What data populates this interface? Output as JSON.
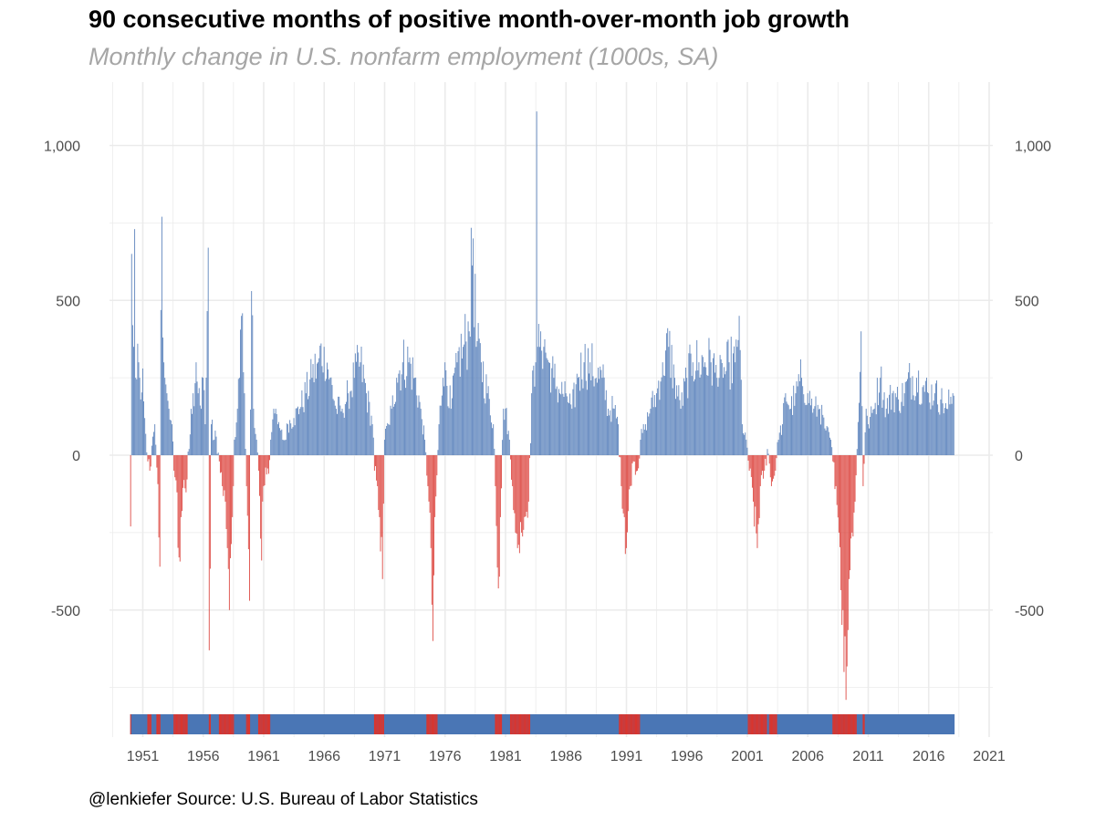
{
  "colors": {
    "positive": "#4a76b5",
    "negative": "#d9352e",
    "grid": "#ebebeb",
    "title": "#000000",
    "subtitle": "#a6a6a6",
    "tick": "#4d4d4d"
  },
  "chart_data": {
    "type": "bar",
    "title": "90 consecutive months of positive month-over-month job growth",
    "subtitle": "Monthly change in U.S. nonfarm employment (1000s, SA)",
    "caption": "@lenkiefer Source: U.S. Bureau of Labor Statistics",
    "xlabel": "",
    "ylabel": "",
    "x_unit": "year",
    "xlim": [
      1949.4,
      2022.0
    ],
    "ylim": [
      -900,
      1200
    ],
    "x_ticks": [
      1951,
      1956,
      1961,
      1966,
      1971,
      1976,
      1981,
      1986,
      1991,
      1996,
      2001,
      2006,
      2011,
      2016,
      2021
    ],
    "x_tick_labels": [
      "1951",
      "1956",
      "1961",
      "1966",
      "1971",
      "1976",
      "1981",
      "1986",
      "1991",
      "1996",
      "2001",
      "2006",
      "2011",
      "2016",
      "2021"
    ],
    "y_ticks": [
      -500,
      0,
      500,
      1000
    ],
    "y_tick_labels": [
      "-500",
      "0",
      "500",
      "1,000"
    ],
    "y_axis_both_sides": true,
    "grid": true,
    "legend": "none",
    "strip": {
      "description": "sign of monthly change",
      "start": 1950.0,
      "end": 2018.1
    },
    "anchor_points": [
      [
        1950.0,
        -230
      ],
      [
        1950.08,
        650
      ],
      [
        1950.15,
        420
      ],
      [
        1950.25,
        350
      ],
      [
        1950.35,
        730
      ],
      [
        1950.45,
        250
      ],
      [
        1950.55,
        360
      ],
      [
        1950.65,
        300
      ],
      [
        1950.75,
        250
      ],
      [
        1950.85,
        180
      ],
      [
        1951.0,
        280
      ],
      [
        1951.2,
        120
      ],
      [
        1951.4,
        -20
      ],
      [
        1951.6,
        -50
      ],
      [
        1951.8,
        60
      ],
      [
        1952.0,
        100
      ],
      [
        1952.2,
        -40
      ],
      [
        1952.4,
        -360
      ],
      [
        1952.55,
        770
      ],
      [
        1952.7,
        380
      ],
      [
        1952.85,
        250
      ],
      [
        1953.0,
        200
      ],
      [
        1953.2,
        150
      ],
      [
        1953.4,
        100
      ],
      [
        1953.6,
        -50
      ],
      [
        1953.8,
        -120
      ],
      [
        1954.0,
        -330
      ],
      [
        1954.2,
        -200
      ],
      [
        1954.4,
        -80
      ],
      [
        1954.6,
        -120
      ],
      [
        1954.8,
        20
      ],
      [
        1955.0,
        150
      ],
      [
        1955.2,
        200
      ],
      [
        1955.4,
        300
      ],
      [
        1955.6,
        200
      ],
      [
        1955.8,
        150
      ],
      [
        1956.0,
        250
      ],
      [
        1956.2,
        100
      ],
      [
        1956.4,
        670
      ],
      [
        1956.5,
        -630
      ],
      [
        1956.7,
        100
      ],
      [
        1956.9,
        50
      ],
      [
        1957.1,
        60
      ],
      [
        1957.3,
        -20
      ],
      [
        1957.6,
        -100
      ],
      [
        1957.8,
        -150
      ],
      [
        1958.0,
        -300
      ],
      [
        1958.2,
        -500
      ],
      [
        1958.4,
        -200
      ],
      [
        1958.6,
        50
      ],
      [
        1958.8,
        150
      ],
      [
        1959.0,
        250
      ],
      [
        1959.2,
        450
      ],
      [
        1959.4,
        200
      ],
      [
        1959.6,
        -100
      ],
      [
        1959.8,
        -470
      ],
      [
        1960.0,
        530
      ],
      [
        1960.2,
        150
      ],
      [
        1960.4,
        50
      ],
      [
        1960.6,
        -50
      ],
      [
        1960.8,
        -340
      ],
      [
        1961.0,
        -100
      ],
      [
        1961.2,
        -40
      ],
      [
        1961.4,
        -60
      ],
      [
        1961.6,
        50
      ],
      [
        1961.8,
        150
      ],
      [
        1962.0,
        150
      ],
      [
        1962.2,
        100
      ],
      [
        1962.4,
        80
      ],
      [
        1962.6,
        50
      ],
      [
        1962.8,
        50
      ],
      [
        1963.0,
        100
      ],
      [
        1963.5,
        120
      ],
      [
        1964.0,
        150
      ],
      [
        1964.5,
        200
      ],
      [
        1965.0,
        250
      ],
      [
        1965.5,
        300
      ],
      [
        1966.0,
        350
      ],
      [
        1966.5,
        250
      ],
      [
        1967.0,
        150
      ],
      [
        1967.5,
        150
      ],
      [
        1968.0,
        200
      ],
      [
        1968.5,
        250
      ],
      [
        1969.0,
        300
      ],
      [
        1969.5,
        200
      ],
      [
        1970.0,
        100
      ],
      [
        1970.2,
        -50
      ],
      [
        1970.4,
        -100
      ],
      [
        1970.6,
        -200
      ],
      [
        1970.8,
        -400
      ],
      [
        1971.0,
        50
      ],
      [
        1971.3,
        100
      ],
      [
        1971.6,
        150
      ],
      [
        1972.0,
        250
      ],
      [
        1972.5,
        300
      ],
      [
        1973.0,
        300
      ],
      [
        1973.5,
        250
      ],
      [
        1974.0,
        150
      ],
      [
        1974.3,
        50
      ],
      [
        1974.6,
        -100
      ],
      [
        1974.8,
        -300
      ],
      [
        1975.0,
        -600
      ],
      [
        1975.2,
        -200
      ],
      [
        1975.5,
        100
      ],
      [
        1975.8,
        250
      ],
      [
        1976.0,
        300
      ],
      [
        1976.5,
        150
      ],
      [
        1977.0,
        300
      ],
      [
        1977.5,
        350
      ],
      [
        1978.0,
        400
      ],
      [
        1978.3,
        700
      ],
      [
        1978.6,
        350
      ],
      [
        1979.0,
        300
      ],
      [
        1979.5,
        200
      ],
      [
        1980.0,
        100
      ],
      [
        1980.2,
        -100
      ],
      [
        1980.4,
        -430
      ],
      [
        1980.6,
        -200
      ],
      [
        1980.8,
        150
      ],
      [
        1981.0,
        150
      ],
      [
        1981.3,
        50
      ],
      [
        1981.6,
        -100
      ],
      [
        1981.8,
        -250
      ],
      [
        1982.0,
        -300
      ],
      [
        1982.3,
        -250
      ],
      [
        1982.6,
        -200
      ],
      [
        1982.9,
        -150
      ],
      [
        1983.2,
        200
      ],
      [
        1983.5,
        300
      ],
      [
        1983.6,
        1110
      ],
      [
        1983.7,
        350
      ],
      [
        1983.9,
        400
      ],
      [
        1984.2,
        350
      ],
      [
        1984.6,
        300
      ],
      [
        1985.0,
        250
      ],
      [
        1985.5,
        200
      ],
      [
        1986.0,
        200
      ],
      [
        1986.5,
        150
      ],
      [
        1987.0,
        250
      ],
      [
        1987.5,
        300
      ],
      [
        1988.0,
        300
      ],
      [
        1988.5,
        250
      ],
      [
        1989.0,
        250
      ],
      [
        1989.5,
        150
      ],
      [
        1990.0,
        150
      ],
      [
        1990.3,
        100
      ],
      [
        1990.6,
        -100
      ],
      [
        1990.8,
        -200
      ],
      [
        1991.0,
        -300
      ],
      [
        1991.3,
        -100
      ],
      [
        1991.6,
        -20
      ],
      [
        1991.9,
        -50
      ],
      [
        1992.2,
        50
      ],
      [
        1992.6,
        100
      ],
      [
        1993.0,
        150
      ],
      [
        1993.5,
        200
      ],
      [
        1994.0,
        300
      ],
      [
        1994.5,
        350
      ],
      [
        1995.0,
        250
      ],
      [
        1995.5,
        150
      ],
      [
        1996.0,
        250
      ],
      [
        1996.5,
        300
      ],
      [
        1997.0,
        300
      ],
      [
        1997.5,
        300
      ],
      [
        1998.0,
        300
      ],
      [
        1998.5,
        250
      ],
      [
        1999.0,
        250
      ],
      [
        1999.5,
        300
      ],
      [
        2000.0,
        300
      ],
      [
        2000.3,
        450
      ],
      [
        2000.6,
        100
      ],
      [
        2000.9,
        50
      ],
      [
        2001.2,
        -50
      ],
      [
        2001.5,
        -150
      ],
      [
        2001.8,
        -300
      ],
      [
        2002.1,
        -100
      ],
      [
        2002.4,
        -50
      ],
      [
        2002.7,
        20
      ],
      [
        2003.0,
        -100
      ],
      [
        2003.3,
        -50
      ],
      [
        2003.6,
        50
      ],
      [
        2003.9,
        100
      ],
      [
        2004.2,
        200
      ],
      [
        2004.6,
        150
      ],
      [
        2005.0,
        200
      ],
      [
        2005.5,
        250
      ],
      [
        2006.0,
        200
      ],
      [
        2006.5,
        150
      ],
      [
        2007.0,
        150
      ],
      [
        2007.5,
        80
      ],
      [
        2007.9,
        50
      ],
      [
        2008.1,
        -20
      ],
      [
        2008.3,
        -100
      ],
      [
        2008.6,
        -250
      ],
      [
        2008.9,
        -500
      ],
      [
        2009.0,
        -700
      ],
      [
        2009.2,
        -790
      ],
      [
        2009.4,
        -400
      ],
      [
        2009.7,
        -250
      ],
      [
        2009.9,
        -150
      ],
      [
        2010.1,
        20
      ],
      [
        2010.4,
        400
      ],
      [
        2010.6,
        -100
      ],
      [
        2010.8,
        150
      ],
      [
        2011.0,
        100
      ],
      [
        2011.5,
        150
      ],
      [
        2012.0,
        250
      ],
      [
        2012.5,
        150
      ],
      [
        2013.0,
        200
      ],
      [
        2013.5,
        180
      ],
      [
        2014.0,
        200
      ],
      [
        2014.5,
        250
      ],
      [
        2015.0,
        250
      ],
      [
        2015.5,
        220
      ],
      [
        2016.0,
        200
      ],
      [
        2016.5,
        200
      ],
      [
        2017.0,
        180
      ],
      [
        2017.5,
        150
      ],
      [
        2018.0,
        200
      ]
    ]
  }
}
